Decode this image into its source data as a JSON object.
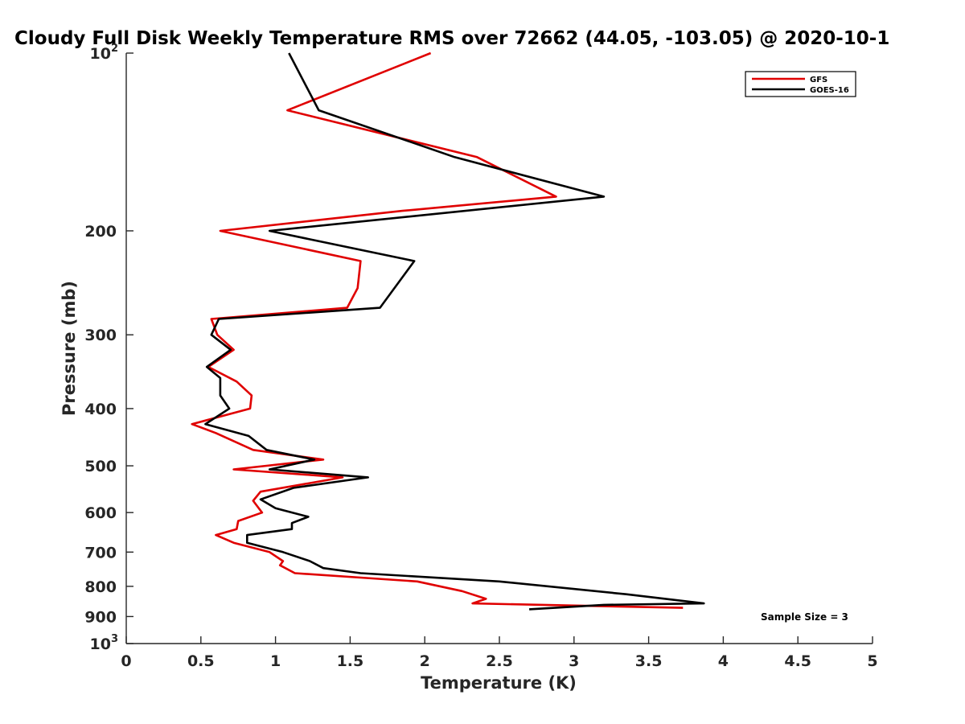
{
  "chart_data": {
    "type": "line",
    "title": "Cloudy Full Disk Weekly Temperature RMS over 72662 (44.05, -103.05) @ 2020-10-1",
    "xlabel": "Temperature (K)",
    "ylabel": "Pressure (mb)",
    "xlim": [
      0,
      5
    ],
    "ylim": [
      100,
      1000
    ],
    "y_scale": "log",
    "y_reversed": true,
    "grid": false,
    "legend_position": "top-right",
    "x_ticks": [
      {
        "value": 0,
        "label": "0"
      },
      {
        "value": 0.5,
        "label": "0.5"
      },
      {
        "value": 1,
        "label": "1"
      },
      {
        "value": 1.5,
        "label": "1.5"
      },
      {
        "value": 2,
        "label": "2"
      },
      {
        "value": 2.5,
        "label": "2.5"
      },
      {
        "value": 3,
        "label": "3"
      },
      {
        "value": 3.5,
        "label": "3.5"
      },
      {
        "value": 4,
        "label": "4"
      },
      {
        "value": 4.5,
        "label": "4.5"
      },
      {
        "value": 5,
        "label": "5"
      }
    ],
    "y_ticks": [
      {
        "value": 100,
        "base": "10",
        "exp": "2"
      },
      {
        "value": 200,
        "label": "200"
      },
      {
        "value": 300,
        "label": "300"
      },
      {
        "value": 400,
        "label": "400"
      },
      {
        "value": 500,
        "label": "500"
      },
      {
        "value": 600,
        "label": "600"
      },
      {
        "value": 700,
        "label": "700"
      },
      {
        "value": 800,
        "label": "800"
      },
      {
        "value": 900,
        "label": "900"
      },
      {
        "value": 1000,
        "base": "10",
        "exp": "3"
      }
    ],
    "annotation": "Sample Size = 3",
    "series": [
      {
        "name": "GFS",
        "color": "#e00000",
        "points": [
          [
            2.04,
            100
          ],
          [
            1.08,
            125
          ],
          [
            2.35,
            150
          ],
          [
            2.88,
            175
          ],
          [
            1.85,
            185
          ],
          [
            0.63,
            200
          ],
          [
            1.57,
            225
          ],
          [
            1.55,
            250
          ],
          [
            1.48,
            270
          ],
          [
            0.57,
            282
          ],
          [
            0.61,
            300
          ],
          [
            0.72,
            318
          ],
          [
            0.55,
            340
          ],
          [
            0.74,
            360
          ],
          [
            0.84,
            380
          ],
          [
            0.83,
            400
          ],
          [
            0.44,
            425
          ],
          [
            0.6,
            440
          ],
          [
            0.85,
            470
          ],
          [
            1.32,
            488
          ],
          [
            0.72,
            507
          ],
          [
            1.45,
            523
          ],
          [
            0.9,
            553
          ],
          [
            0.85,
            573
          ],
          [
            0.91,
            600
          ],
          [
            0.75,
            620
          ],
          [
            0.74,
            640
          ],
          [
            0.6,
            655
          ],
          [
            0.72,
            675
          ],
          [
            0.96,
            700
          ],
          [
            1.05,
            725
          ],
          [
            1.03,
            737
          ],
          [
            1.13,
            760
          ],
          [
            1.95,
            785
          ],
          [
            2.25,
            815
          ],
          [
            2.41,
            840
          ],
          [
            2.32,
            855
          ],
          [
            3.73,
            870
          ]
        ]
      },
      {
        "name": "GOES-16",
        "color": "#000000",
        "points": [
          [
            1.09,
            100
          ],
          [
            1.29,
            125
          ],
          [
            2.2,
            150
          ],
          [
            3.2,
            175
          ],
          [
            0.96,
            200
          ],
          [
            1.93,
            225
          ],
          [
            1.7,
            270
          ],
          [
            0.62,
            282
          ],
          [
            0.57,
            300
          ],
          [
            0.7,
            318
          ],
          [
            0.54,
            340
          ],
          [
            0.63,
            355
          ],
          [
            0.63,
            380
          ],
          [
            0.69,
            400
          ],
          [
            0.53,
            425
          ],
          [
            0.82,
            445
          ],
          [
            0.94,
            470
          ],
          [
            1.26,
            488
          ],
          [
            0.96,
            507
          ],
          [
            1.62,
            523
          ],
          [
            1.12,
            545
          ],
          [
            0.9,
            570
          ],
          [
            1.0,
            590
          ],
          [
            1.22,
            610
          ],
          [
            1.11,
            625
          ],
          [
            1.11,
            640
          ],
          [
            0.81,
            655
          ],
          [
            0.81,
            675
          ],
          [
            1.05,
            700
          ],
          [
            1.23,
            725
          ],
          [
            1.32,
            745
          ],
          [
            1.57,
            760
          ],
          [
            2.5,
            785
          ],
          [
            3.35,
            825
          ],
          [
            3.87,
            855
          ],
          [
            3.2,
            860
          ],
          [
            2.7,
            875
          ]
        ]
      }
    ]
  }
}
